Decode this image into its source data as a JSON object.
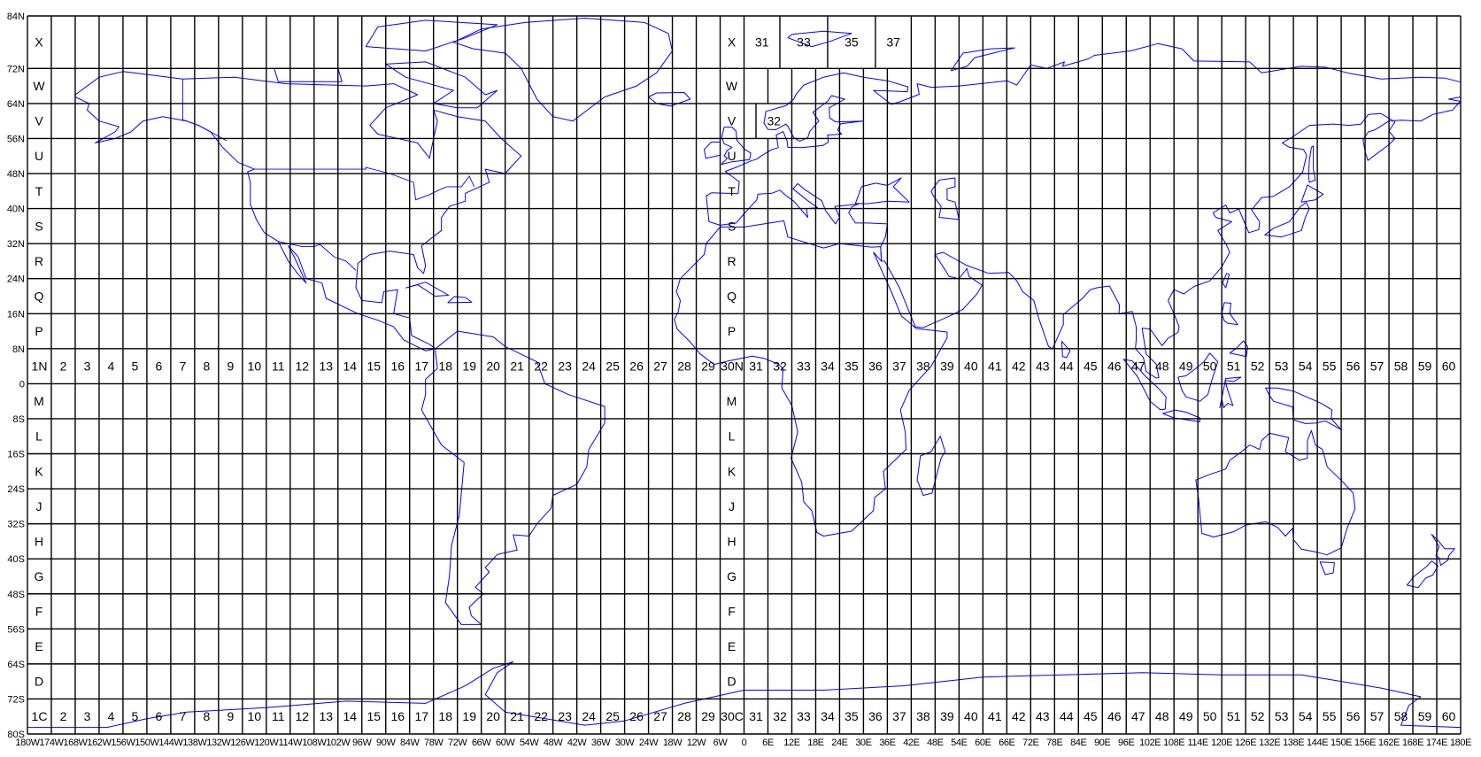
{
  "map": {
    "type": "UTM zone grid",
    "colors": {
      "grid": "#000000",
      "coastline": "#0000ff",
      "background": "#ffffff"
    },
    "lat_labels": [
      "84N",
      "72N",
      "64N",
      "56N",
      "48N",
      "40N",
      "32N",
      "24N",
      "16N",
      "8N",
      "0",
      "8S",
      "16S",
      "24S",
      "32S",
      "40S",
      "48S",
      "56S",
      "64S",
      "72S",
      "80S"
    ],
    "lon_labels": [
      "180W",
      "174W",
      "168W",
      "162W",
      "156W",
      "150W",
      "144W",
      "138W",
      "132W",
      "126W",
      "120W",
      "114W",
      "108W",
      "102W",
      "96W",
      "90W",
      "84W",
      "78W",
      "72W",
      "66W",
      "60W",
      "54W",
      "48W",
      "42W",
      "36W",
      "30W",
      "24W",
      "18W",
      "12W",
      "6W",
      "0",
      "6E",
      "12E",
      "18E",
      "24E",
      "30E",
      "36E",
      "42E",
      "48E",
      "54E",
      "60E",
      "66E",
      "72E",
      "78E",
      "84E",
      "90E",
      "96E",
      "102E",
      "108E",
      "114E",
      "120E",
      "126E",
      "132E",
      "138E",
      "144E",
      "150E",
      "156E",
      "162E",
      "168E",
      "174E",
      "180E"
    ],
    "band_letters": [
      "X",
      "W",
      "V",
      "U",
      "T",
      "S",
      "R",
      "Q",
      "P",
      "N",
      "M",
      "L",
      "K",
      "J",
      "H",
      "G",
      "F",
      "E",
      "D",
      "C"
    ],
    "zone_row_north": [
      "1N",
      "2",
      "3",
      "4",
      "5",
      "6",
      "7",
      "8",
      "9",
      "10",
      "11",
      "12",
      "13",
      "14",
      "15",
      "16",
      "17",
      "18",
      "19",
      "20",
      "21",
      "22",
      "23",
      "24",
      "25",
      "26",
      "27",
      "28",
      "29",
      "30N",
      "31",
      "32",
      "33",
      "34",
      "35",
      "36",
      "37",
      "38",
      "39",
      "40",
      "41",
      "42",
      "43",
      "44",
      "45",
      "46",
      "47",
      "48",
      "49",
      "50",
      "51",
      "52",
      "53",
      "54",
      "55",
      "56",
      "57",
      "58",
      "59",
      "60"
    ],
    "zone_row_south": [
      "1C",
      "2",
      "3",
      "4",
      "5",
      "6",
      "7",
      "8",
      "9",
      "10",
      "11",
      "12",
      "13",
      "14",
      "15",
      "16",
      "17",
      "18",
      "19",
      "20",
      "21",
      "22",
      "23",
      "24",
      "25",
      "26",
      "27",
      "28",
      "29",
      "30C",
      "31",
      "32",
      "33",
      "34",
      "35",
      "36",
      "37",
      "38",
      "39",
      "40",
      "41",
      "42",
      "43",
      "44",
      "45",
      "46",
      "47",
      "48",
      "49",
      "50",
      "51",
      "52",
      "53",
      "54",
      "55",
      "56",
      "57",
      "58",
      "59",
      "60"
    ],
    "svalbard_zones": [
      "31",
      "33",
      "35",
      "37"
    ],
    "norway_zone": "32"
  }
}
